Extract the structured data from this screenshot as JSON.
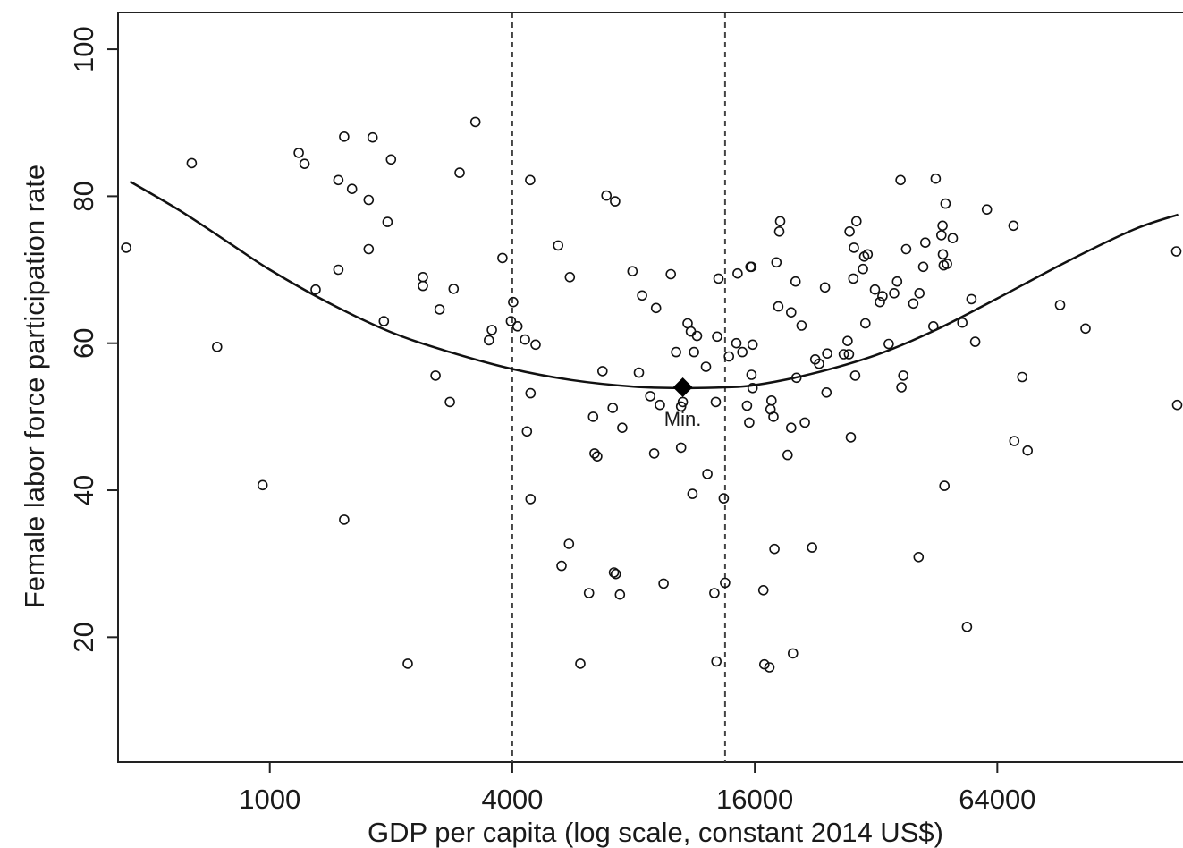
{
  "chart_data": {
    "type": "scatter",
    "title": "",
    "xlabel": "GDP per capita (log scale, constant 2014 US$)",
    "ylabel": "Female labor force participation rate",
    "x_scale": "log",
    "xlim": [
      420,
      185000
    ],
    "ylim": [
      3,
      105
    ],
    "xticks": [
      1000,
      4000,
      16000,
      64000
    ],
    "xtick_labels": [
      "1000",
      "4000",
      "16000",
      "64000"
    ],
    "yticks": [
      20,
      40,
      60,
      80,
      100
    ],
    "ytick_labels": [
      "20",
      "40",
      "60",
      "80",
      "100"
    ],
    "grid": false,
    "legend": "none",
    "vlines": [
      4000,
      13500
    ],
    "fit_curve": {
      "x": [
        450,
        600,
        800,
        1000,
        1400,
        2000,
        2800,
        4000,
        5600,
        8000,
        10600,
        13500,
        16000,
        22000,
        32000,
        45000,
        64000,
        96000,
        140000,
        180000
      ],
      "y": [
        82,
        78,
        73.5,
        70,
        65.5,
        61.5,
        58.8,
        56.5,
        55,
        54.1,
        53.9,
        54,
        54.3,
        55.8,
        58.4,
        61.8,
        66.1,
        71.2,
        75.5,
        77.5
      ]
    },
    "min_point": {
      "x": 10600,
      "y": 54,
      "label": "Min."
    },
    "points": [
      [
        440,
        73
      ],
      [
        640,
        84.5
      ],
      [
        740,
        59.5
      ],
      [
        960,
        40.7
      ],
      [
        1180,
        85.9
      ],
      [
        1220,
        84.4
      ],
      [
        1300,
        67.3
      ],
      [
        1480,
        82.2
      ],
      [
        1480,
        70
      ],
      [
        1530,
        36
      ],
      [
        1530,
        88.1
      ],
      [
        1600,
        81
      ],
      [
        1760,
        79.5
      ],
      [
        1760,
        72.8
      ],
      [
        1800,
        88
      ],
      [
        1920,
        63
      ],
      [
        1960,
        76.5
      ],
      [
        2000,
        85
      ],
      [
        2200,
        16.4
      ],
      [
        2400,
        69
      ],
      [
        2400,
        67.8
      ],
      [
        2580,
        55.6
      ],
      [
        2640,
        64.6
      ],
      [
        2800,
        52
      ],
      [
        2860,
        67.4
      ],
      [
        2960,
        83.2
      ],
      [
        3240,
        90.1
      ],
      [
        3500,
        60.4
      ],
      [
        3560,
        61.8
      ],
      [
        3780,
        71.6
      ],
      [
        3970,
        63
      ],
      [
        4020,
        65.6
      ],
      [
        4120,
        62.3
      ],
      [
        4300,
        60.5
      ],
      [
        4350,
        48
      ],
      [
        4430,
        82.2
      ],
      [
        4440,
        53.2
      ],
      [
        4440,
        38.8
      ],
      [
        4570,
        59.8
      ],
      [
        5200,
        73.3
      ],
      [
        5300,
        29.7
      ],
      [
        5530,
        32.7
      ],
      [
        5560,
        69
      ],
      [
        5900,
        16.4
      ],
      [
        6200,
        26
      ],
      [
        6350,
        50
      ],
      [
        6400,
        45
      ],
      [
        6500,
        44.6
      ],
      [
        6700,
        56.2
      ],
      [
        6850,
        80.1
      ],
      [
        7100,
        51.2
      ],
      [
        7150,
        28.8
      ],
      [
        7230,
        28.6
      ],
      [
        7200,
        79.3
      ],
      [
        7400,
        25.8
      ],
      [
        7500,
        48.5
      ],
      [
        7950,
        69.8
      ],
      [
        8250,
        56
      ],
      [
        8400,
        66.5
      ],
      [
        8800,
        52.8
      ],
      [
        9100,
        64.8
      ],
      [
        9000,
        45
      ],
      [
        9300,
        51.6
      ],
      [
        9500,
        27.3
      ],
      [
        9900,
        69.4
      ],
      [
        10200,
        58.8
      ],
      [
        10500,
        45.8
      ],
      [
        10600,
        52
      ],
      [
        10500,
        51.4
      ],
      [
        10900,
        62.7
      ],
      [
        11200,
        39.5
      ],
      [
        11300,
        58.8
      ],
      [
        11100,
        61.6
      ],
      [
        11500,
        61
      ],
      [
        12100,
        56.8
      ],
      [
        12200,
        42.2
      ],
      [
        12700,
        26
      ],
      [
        12850,
        16.7
      ],
      [
        12800,
        52
      ],
      [
        12900,
        60.9
      ],
      [
        13000,
        68.8
      ],
      [
        13400,
        38.9
      ],
      [
        13500,
        27.4
      ],
      [
        13800,
        58.2
      ],
      [
        14400,
        60
      ],
      [
        14500,
        69.5
      ],
      [
        14900,
        58.8
      ],
      [
        15300,
        51.5
      ],
      [
        15500,
        49.2
      ],
      [
        15600,
        70.4
      ],
      [
        15700,
        70.4
      ],
      [
        15700,
        55.7
      ],
      [
        15800,
        59.8
      ],
      [
        15800,
        53.9
      ],
      [
        16800,
        26.4
      ],
      [
        16900,
        16.3
      ],
      [
        17400,
        15.9
      ],
      [
        17500,
        51
      ],
      [
        17600,
        52.2
      ],
      [
        17800,
        50
      ],
      [
        17900,
        32
      ],
      [
        18100,
        71
      ],
      [
        18300,
        65
      ],
      [
        18400,
        75.2
      ],
      [
        18500,
        76.6
      ],
      [
        19300,
        44.8
      ],
      [
        19700,
        48.5
      ],
      [
        19700,
        64.2
      ],
      [
        19900,
        17.8
      ],
      [
        20200,
        68.4
      ],
      [
        20300,
        55.3
      ],
      [
        20900,
        62.4
      ],
      [
        21300,
        49.2
      ],
      [
        22200,
        32.2
      ],
      [
        22600,
        57.8
      ],
      [
        23100,
        57.2
      ],
      [
        23900,
        67.6
      ],
      [
        24100,
        53.3
      ],
      [
        24200,
        58.6
      ],
      [
        26600,
        58.5
      ],
      [
        27200,
        60.3
      ],
      [
        27400,
        58.5
      ],
      [
        27700,
        47.2
      ],
      [
        27500,
        75.2
      ],
      [
        28100,
        68.8
      ],
      [
        28200,
        73
      ],
      [
        28400,
        55.6
      ],
      [
        28600,
        76.6
      ],
      [
        29700,
        70.1
      ],
      [
        29900,
        71.8
      ],
      [
        30100,
        62.7
      ],
      [
        30500,
        72.1
      ],
      [
        31800,
        67.3
      ],
      [
        32700,
        65.6
      ],
      [
        33200,
        66.4
      ],
      [
        34400,
        59.9
      ],
      [
        35500,
        66.8
      ],
      [
        36100,
        68.4
      ],
      [
        36800,
        82.2
      ],
      [
        37000,
        54
      ],
      [
        37400,
        55.6
      ],
      [
        38000,
        72.8
      ],
      [
        39600,
        65.4
      ],
      [
        40800,
        30.9
      ],
      [
        41000,
        66.8
      ],
      [
        41900,
        70.4
      ],
      [
        42400,
        73.7
      ],
      [
        44400,
        62.3
      ],
      [
        45000,
        82.4
      ],
      [
        46500,
        74.7
      ],
      [
        46800,
        76
      ],
      [
        46900,
        72.1
      ],
      [
        47100,
        70.6
      ],
      [
        47300,
        40.6
      ],
      [
        47600,
        79
      ],
      [
        48000,
        70.8
      ],
      [
        49600,
        74.3
      ],
      [
        52400,
        62.8
      ],
      [
        53800,
        21.4
      ],
      [
        55200,
        66
      ],
      [
        56400,
        60.2
      ],
      [
        60300,
        78.2
      ],
      [
        70200,
        76
      ],
      [
        70500,
        46.7
      ],
      [
        73800,
        55.4
      ],
      [
        76100,
        45.4
      ],
      [
        91600,
        65.2
      ],
      [
        106000,
        62
      ],
      [
        178000,
        72.5
      ],
      [
        179000,
        51.6
      ]
    ]
  }
}
